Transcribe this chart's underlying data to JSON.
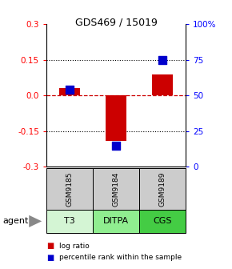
{
  "title": "GDS469 / 15019",
  "samples": [
    "GSM9185",
    "GSM9184",
    "GSM9189"
  ],
  "agents": [
    "T3",
    "DITPA",
    "CGS"
  ],
  "log_ratios": [
    0.03,
    -0.19,
    0.09
  ],
  "percentile_ranks": [
    54,
    15,
    75
  ],
  "ylim_left": [
    -0.3,
    0.3
  ],
  "ylim_right": [
    0,
    100
  ],
  "yticks_left": [
    -0.3,
    -0.15,
    0.0,
    0.15,
    0.3
  ],
  "yticks_right": [
    0,
    25,
    50,
    75,
    100
  ],
  "ytick_labels_right": [
    "0",
    "25",
    "50",
    "75",
    "100%"
  ],
  "bar_color_red": "#cc0000",
  "bar_color_blue": "#0000cc",
  "bar_width": 0.45,
  "dot_size": 50,
  "zero_line_color": "#cc0000",
  "agent_colors": [
    "#d4f5d4",
    "#90ee90",
    "#44cc44"
  ],
  "sample_bg": "#cccccc",
  "legend_red": "log ratio",
  "legend_blue": "percentile rank within the sample",
  "title_fontsize": 9
}
